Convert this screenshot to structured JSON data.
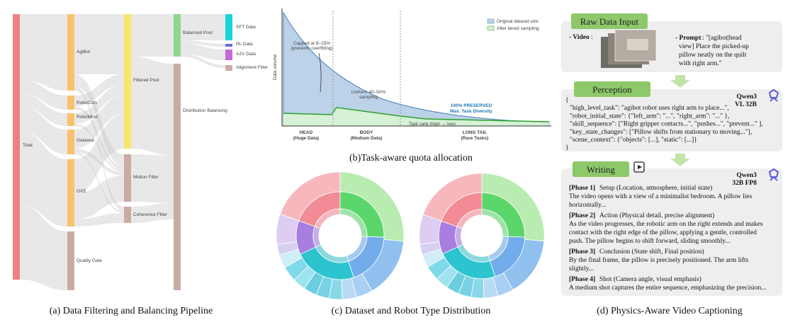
{
  "panel_a": {
    "nodes": [
      "Total",
      "AgiBot",
      "RoboCoin",
      "RoboMind",
      "Galaxea",
      "OXE",
      "Quality Gate",
      "Filtered Pool",
      "Motion Filter",
      "Coherence Filter",
      "Balanced Pool",
      "Distribution Balancing",
      "SFT Data",
      "RL Data",
      "A2V Data",
      "Alignment Filter"
    ],
    "caption": "(a) Data Filtering and Balancing Pipeline"
  },
  "panel_b": {
    "y_label": "Data volume",
    "x_label": "Task rank (high → low)",
    "legend": [
      "Original dataset size",
      "After tiered sampling"
    ],
    "annotations": {
      "capped": [
        "Capped at 8–15%",
        "(prevents overfitting)"
      ],
      "uniform": [
        "Uniform 40–50%",
        "sampling"
      ],
      "preserved": [
        "100% PRESERVED",
        "Max. Task Diversity"
      ]
    },
    "regions": [
      {
        "name": "HEAD",
        "sub": "(Huge Data)"
      },
      {
        "name": "BODY",
        "sub": "(Medium Data)"
      },
      {
        "name": "LONG TAIL",
        "sub": "(Rare Tasks)"
      }
    ],
    "caption": "(b)Task-aware quota allocation"
  },
  "panel_c": {
    "caption": "(c) Dataset and Robot Type Distribution"
  },
  "panel_d": {
    "raw": {
      "header": "Raw Data Input",
      "video_label": "- Video",
      "video_colon": ":",
      "prompt_label": "- Prompt",
      "prompt_lines": [
        ": \"[agibot|head",
        "view] Place the picked-up",
        "pillow neatly on the quilt",
        "with right arm.\""
      ]
    },
    "perception": {
      "header": "Perception",
      "model": [
        "Qwen3",
        "VL 32B"
      ],
      "lines": [
        "{",
        "\"high_level_task\": \"agibot robot uses right arm to place...\",",
        "\"robot_initial_state\": {\"left_arm\": \"...\", \"right_arm\": \"...\" },",
        "\"skill_sequence\": [\"Right gripper contacts...\", \"pushes...\", \"prevent...\" ],",
        "\"key_state_changes\": [\"Pillow shifts from stationary to moving...\"],",
        "\"scene_context\": {\"objects\": [...], \"static\": [...]}",
        "}"
      ]
    },
    "writing": {
      "header": "Writing",
      "model": [
        "Qwen3",
        "32B FP8"
      ],
      "phases": [
        {
          "label": "[Phase 1]",
          "heading": "Setup (Location, atmosphere, initial state)",
          "lines": [
            "The video opens with a view of a minimalist bedroom. A pillow lies",
            "horizontally..."
          ]
        },
        {
          "label": "[Phase 2]",
          "heading": "Action (Physical detail, precise alignment)",
          "lines": [
            "As the video progresses, the robotic arm on the right extends and makes",
            "contact with the right edge of the pillow, applying a gentle, controlled",
            "push. The pillow begins to shift forward, sliding smoothly..."
          ]
        },
        {
          "label": "[Phase 3]",
          "heading": "Conclusion (State shift, Final position)",
          "lines": [
            "By the final frame, the pillow is precisely positioned. The arm lifts",
            "slightly..."
          ]
        },
        {
          "label": "[Phase 4]",
          "heading": "Shot (Camera angle, visual emphasis)",
          "lines": [
            "A medium shot captures the entire sequence, emphasizing the precision..."
          ]
        }
      ]
    },
    "caption": "(d) Physics-Aware Video Captioning"
  }
}
